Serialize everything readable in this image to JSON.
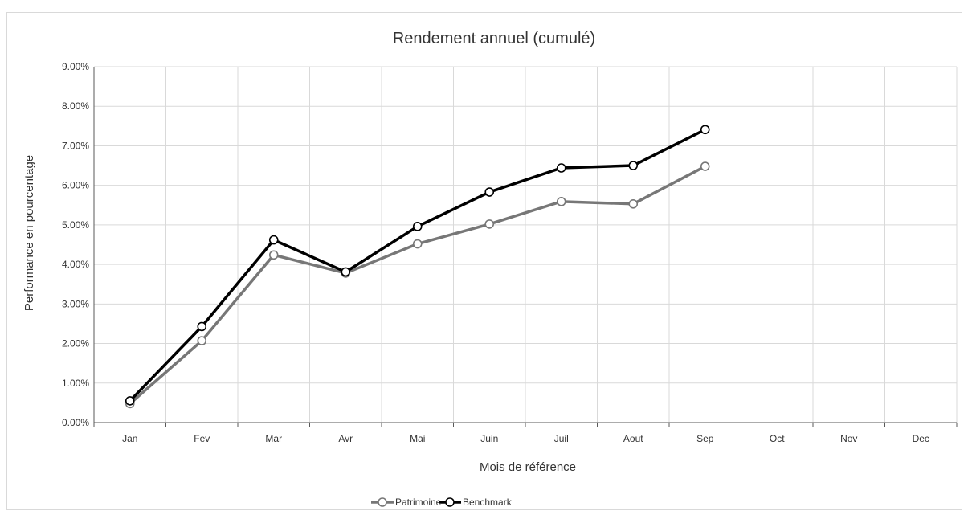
{
  "chart_data": {
    "type": "line",
    "title": "Rendement annuel (cumulé)",
    "xlabel": "Mois de référence",
    "ylabel": "Performance en pourcentage",
    "categories": [
      "Jan",
      "Fev",
      "Mar",
      "Avr",
      "Mai",
      "Juin",
      "Juil",
      "Aout",
      "Sep",
      "Oct",
      "Nov",
      "Dec"
    ],
    "y_ticks": [
      "0.00%",
      "1.00%",
      "2.00%",
      "3.00%",
      "4.00%",
      "5.00%",
      "6.00%",
      "7.00%",
      "8.00%",
      "9.00%"
    ],
    "ylim": [
      0,
      9
    ],
    "y_unit": "%",
    "grid": true,
    "legend_position": "bottom",
    "series": [
      {
        "name": "Patrimoine",
        "color": "#777777",
        "values": [
          0.48,
          2.07,
          4.24,
          3.78,
          4.52,
          5.02,
          5.59,
          5.53,
          6.48,
          null,
          null,
          null
        ]
      },
      {
        "name": "Benchmark",
        "color": "#000000",
        "values": [
          0.55,
          2.43,
          4.62,
          3.81,
          4.96,
          5.83,
          6.44,
          6.5,
          7.41,
          null,
          null,
          null
        ]
      }
    ]
  }
}
